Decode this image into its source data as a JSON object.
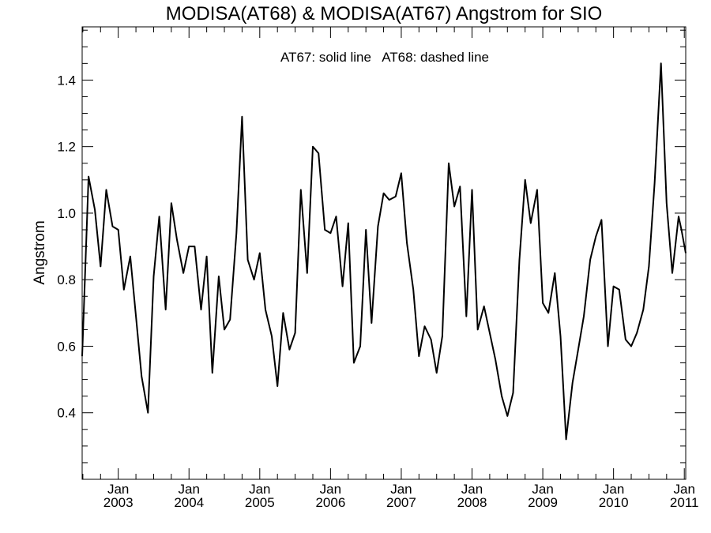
{
  "chart_data": {
    "type": "line",
    "title": "MODISA(AT68) & MODISA(AT67)  Angstrom for SIO",
    "annotation": "AT67: solid line   AT68: dashed line",
    "xlabel": "",
    "ylabel": "Angstrom",
    "xlim": [
      2002.49,
      2011.02
    ],
    "ylim": [
      0.2,
      1.56
    ],
    "grid": false,
    "y_ticks": [
      0.4,
      0.6,
      0.8,
      1.0,
      1.2,
      1.4
    ],
    "y_tick_labels": [
      "0.4",
      "0.6",
      "0.8",
      "1.0",
      "1.2",
      "1.4"
    ],
    "x_ticks": [
      2003,
      2004,
      2005,
      2006,
      2007,
      2008,
      2009,
      2010,
      2011
    ],
    "x_tick_labels_month": [
      "Jan",
      "Jan",
      "Jan",
      "Jan",
      "Jan",
      "Jan",
      "Jan",
      "Jan",
      "Jan"
    ],
    "x_tick_labels_year": [
      "2003",
      "2004",
      "2005",
      "2006",
      "2007",
      "2008",
      "2009",
      "2010",
      "2011"
    ],
    "series": [
      {
        "style": "solid",
        "x": [
          2002.49,
          2002.58,
          2002.67,
          2002.75,
          2002.83,
          2002.92,
          2003.0,
          2003.08,
          2003.17,
          2003.25,
          2003.33,
          2003.42,
          2003.5,
          2003.58,
          2003.67,
          2003.75,
          2003.83,
          2003.92,
          2004.0,
          2004.08,
          2004.17,
          2004.25,
          2004.33,
          2004.42,
          2004.5,
          2004.58,
          2004.67,
          2004.75,
          2004.83,
          2004.92,
          2005.0,
          2005.08,
          2005.17,
          2005.25,
          2005.33,
          2005.42,
          2005.5,
          2005.58,
          2005.67,
          2005.75,
          2005.83,
          2005.92,
          2006.0,
          2006.08,
          2006.17,
          2006.25,
          2006.33,
          2006.42,
          2006.5,
          2006.58,
          2006.67,
          2006.75,
          2006.83,
          2006.92,
          2007.0,
          2007.08,
          2007.17,
          2007.25,
          2007.33,
          2007.42,
          2007.5,
          2007.58,
          2007.67,
          2007.75,
          2007.83,
          2007.92,
          2008.0,
          2008.08,
          2008.17,
          2008.25,
          2008.33,
          2008.42,
          2008.5,
          2008.58,
          2008.67,
          2008.75,
          2008.83,
          2008.92,
          2009.0,
          2009.08,
          2009.17,
          2009.25,
          2009.33,
          2009.42,
          2009.5,
          2009.58,
          2009.67,
          2009.75,
          2009.83,
          2009.92,
          2010.0,
          2010.08,
          2010.17,
          2010.25,
          2010.33,
          2010.42,
          2010.5,
          2010.58,
          2010.67,
          2010.75,
          2010.83,
          2010.92,
          2010.96,
          2011.02
        ],
        "y": [
          0.57,
          1.11,
          1.01,
          0.84,
          1.07,
          0.96,
          0.95,
          0.77,
          0.87,
          0.69,
          0.51,
          0.4,
          0.81,
          0.99,
          0.71,
          1.03,
          0.92,
          0.82,
          0.9,
          0.9,
          0.71,
          0.87,
          0.52,
          0.81,
          0.65,
          0.68,
          0.94,
          1.29,
          0.86,
          0.8,
          0.88,
          0.71,
          0.63,
          0.48,
          0.7,
          0.59,
          0.64,
          1.07,
          0.82,
          1.2,
          1.18,
          0.95,
          0.94,
          0.99,
          0.78,
          0.97,
          0.55,
          0.6,
          0.95,
          0.67,
          0.96,
          1.06,
          1.04,
          1.05,
          1.12,
          0.91,
          0.77,
          0.57,
          0.66,
          0.62,
          0.52,
          0.63,
          1.15,
          1.02,
          1.08,
          0.69,
          1.07,
          0.65,
          0.72,
          0.64,
          0.56,
          0.45,
          0.39,
          0.46,
          0.86,
          1.1,
          0.97,
          1.07,
          0.73,
          0.7,
          0.82,
          0.63,
          0.32,
          0.49,
          0.59,
          0.69,
          0.86,
          0.93,
          0.98,
          0.6,
          0.78,
          0.77,
          0.62,
          0.6,
          0.64,
          0.71,
          0.84,
          1.09,
          1.45,
          1.03,
          0.82,
          0.99,
          0.95,
          0.88
        ]
      }
    ]
  }
}
